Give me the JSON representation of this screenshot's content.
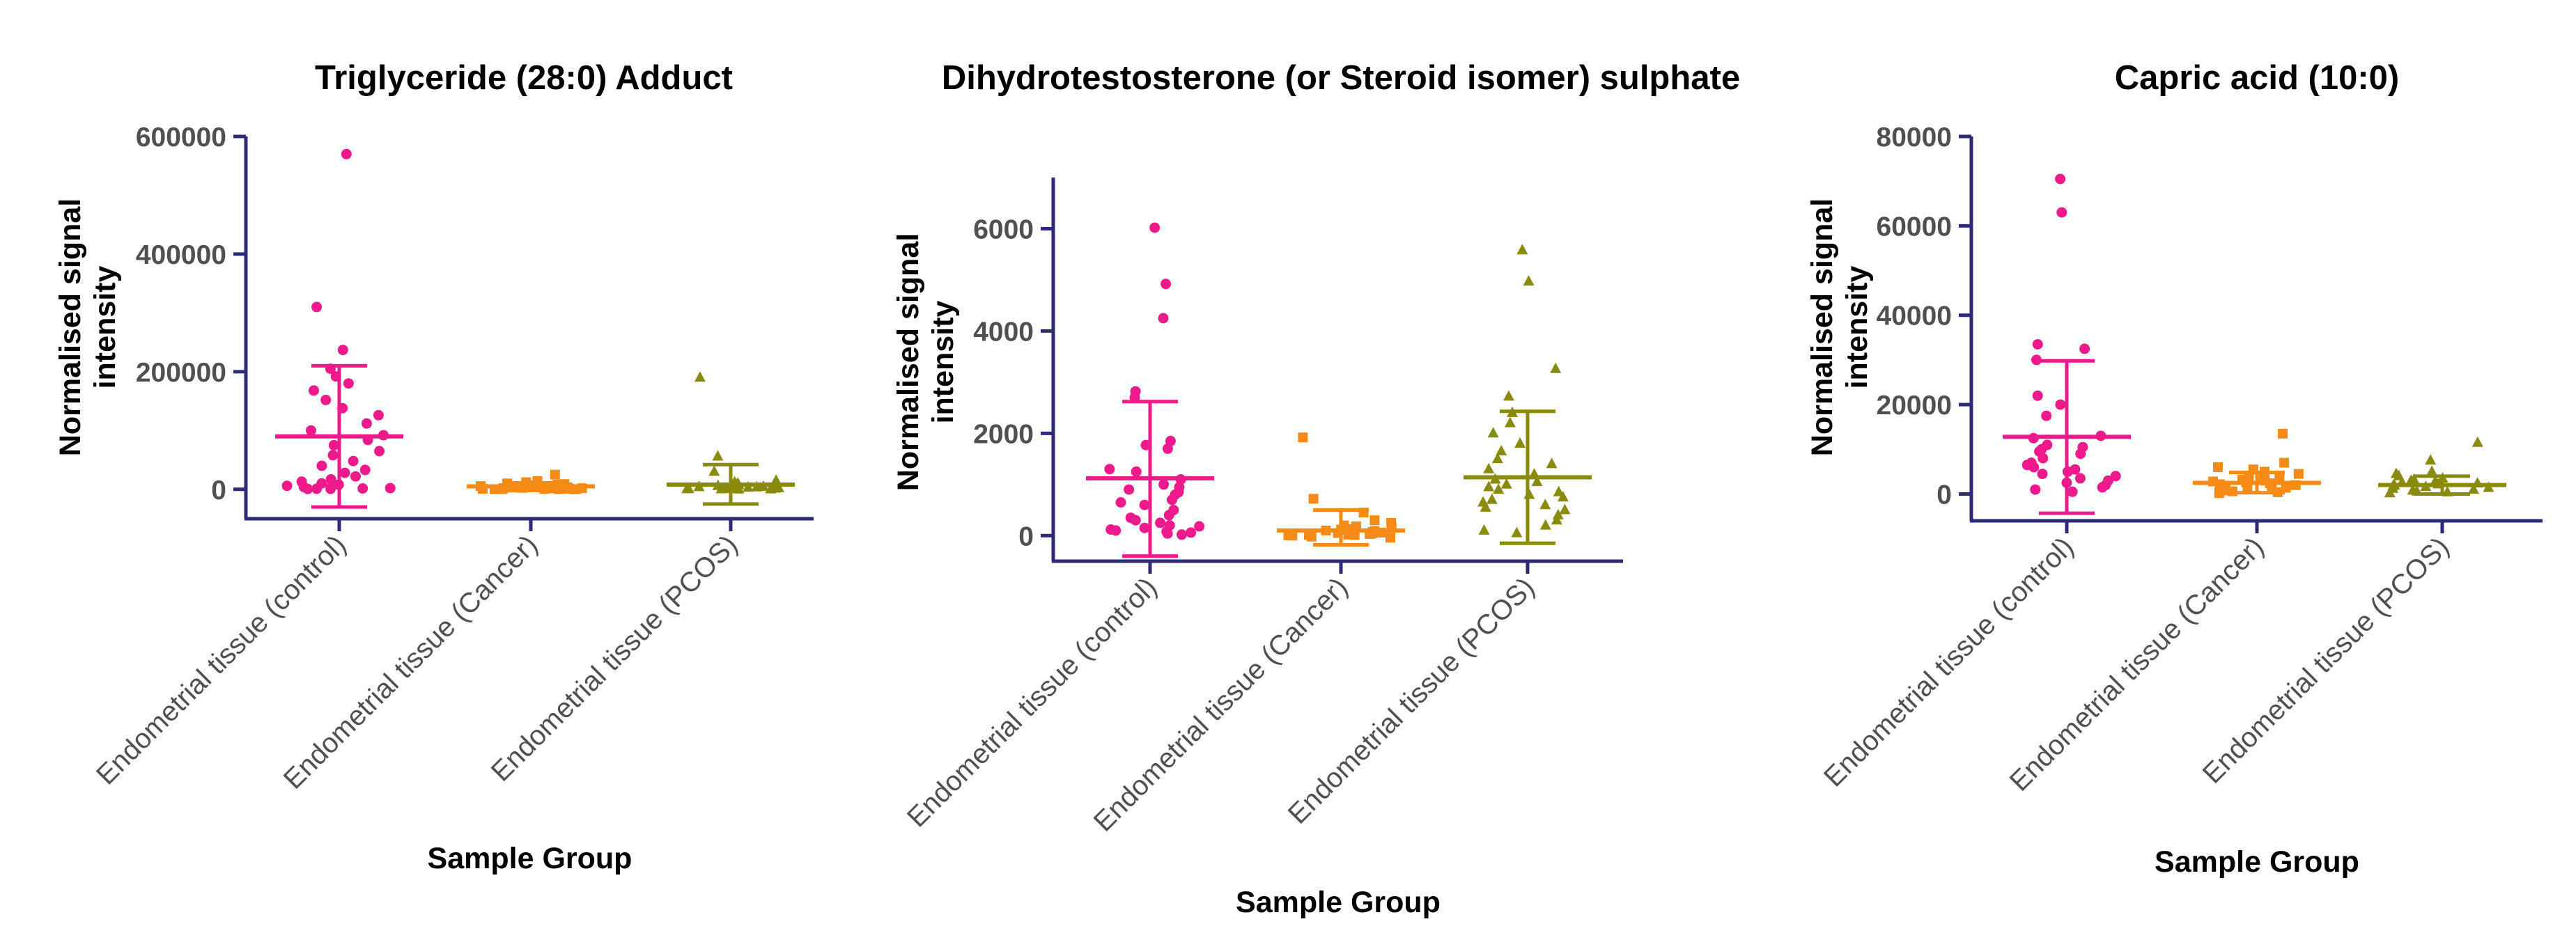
{
  "colors": {
    "axis": "#2d2a7a",
    "control": "#ee1a8c",
    "cancer": "#f58b14",
    "pcos": "#8a8a0c"
  },
  "chart_data": [
    {
      "type": "scatter",
      "title": "Triglyceride (28:0) Adduct",
      "xlabel": "Sample Group",
      "ylabel_lines": [
        "Normalised signal",
        "intensity"
      ],
      "ylim": [
        -50000,
        600000
      ],
      "yticks": [
        0,
        200000,
        400000,
        600000
      ],
      "ytick_labels": [
        "0",
        "200000",
        "400000",
        "600000"
      ],
      "categories": [
        "Endometrial tissue (control)",
        "Endometrial tissue (Cancer)",
        "Endometrial tissue (PCOS)"
      ],
      "series": [
        {
          "name": "Endometrial tissue (control)",
          "marker": "circle",
          "mean": 90000,
          "sd_low": -30000,
          "sd_high": 210000,
          "values": [
            570000,
            310000,
            237000,
            205000,
            192000,
            180000,
            168000,
            152000,
            138000,
            126000,
            112000,
            100000,
            92000,
            84000,
            75000,
            65000,
            58000,
            48000,
            40000,
            33000,
            28000,
            22000,
            17000,
            13000,
            10000,
            8000,
            6000,
            4000,
            3000,
            2000,
            1500,
            1000,
            800,
            500
          ]
        },
        {
          "name": "Endometrial tissue (Cancer)",
          "marker": "square",
          "mean": 5000,
          "sd_low": -2000,
          "sd_high": 11000,
          "values": [
            25000,
            14000,
            12000,
            10000,
            9000,
            8000,
            7000,
            6500,
            6000,
            5500,
            5000,
            4500,
            4000,
            3500,
            3000,
            2500,
            2000,
            1800,
            1500,
            1200,
            1000,
            800,
            600,
            400,
            300,
            200,
            150,
            100
          ]
        },
        {
          "name": "Endometrial tissue (PCOS)",
          "marker": "triangle",
          "mean": 8000,
          "sd_low": -25000,
          "sd_high": 42000,
          "values": [
            190000,
            56000,
            30000,
            15000,
            12000,
            10000,
            9000,
            8000,
            7000,
            6000,
            5000,
            4500,
            4000,
            3500,
            3000,
            2500,
            2000,
            1500,
            1200,
            1000,
            800,
            600,
            400,
            300,
            200,
            100
          ]
        }
      ]
    },
    {
      "type": "scatter",
      "title": "Dihydrotestosterone (or Steroid isomer) sulphate",
      "xlabel": "Sample Group",
      "ylabel_lines": [
        "Normalised signal",
        "intensity"
      ],
      "ylim": [
        -500,
        7000
      ],
      "yticks": [
        0,
        2000,
        4000,
        6000
      ],
      "ytick_labels": [
        "0",
        "2000",
        "4000",
        "6000"
      ],
      "categories": [
        "Endometrial tissue (control)",
        "Endometrial tissue (Cancer)",
        "Endometrial tissue (PCOS)"
      ],
      "series": [
        {
          "name": "Endometrial tissue (control)",
          "marker": "circle",
          "mean": 1120,
          "sd_low": -400,
          "sd_high": 2620,
          "values": [
            6020,
            4920,
            4250,
            2820,
            2700,
            1850,
            1770,
            1700,
            1300,
            1250,
            1100,
            1000,
            950,
            900,
            850,
            800,
            700,
            650,
            600,
            500,
            400,
            350,
            300,
            250,
            200,
            180,
            150,
            120,
            100,
            80,
            60,
            40,
            20
          ]
        },
        {
          "name": "Endometrial tissue (Cancer)",
          "marker": "square",
          "mean": 100,
          "sd_low": -180,
          "sd_high": 500,
          "values": [
            1920,
            720,
            450,
            300,
            250,
            200,
            180,
            150,
            130,
            120,
            100,
            90,
            80,
            70,
            60,
            50,
            40,
            30,
            20,
            15,
            10,
            5,
            0,
            -20,
            -40
          ]
        },
        {
          "name": "Endometrial tissue (PCOS)",
          "marker": "triangle",
          "mean": 1140,
          "sd_low": -150,
          "sd_high": 2430,
          "values": [
            5580,
            4970,
            3260,
            2720,
            2400,
            2200,
            2000,
            1800,
            1650,
            1500,
            1400,
            1300,
            1200,
            1100,
            1050,
            1000,
            950,
            900,
            850,
            800,
            750,
            700,
            650,
            600,
            550,
            500,
            400,
            300,
            200,
            100,
            50
          ]
        }
      ]
    },
    {
      "type": "scatter",
      "title": "Capric acid (10:0)",
      "xlabel": "Sample Group",
      "ylabel_lines": [
        "Normalised signal",
        "intensity"
      ],
      "ylim": [
        -6000,
        80000
      ],
      "yticks": [
        0,
        20000,
        40000,
        60000,
        80000
      ],
      "ytick_labels": [
        "0",
        "20000",
        "40000",
        "60000",
        "80000"
      ],
      "categories": [
        "Endometrial tissue (control)",
        "Endometrial tissue (Cancer)",
        "Endometrial tissue (PCOS)"
      ],
      "series": [
        {
          "name": "Endometrial tissue (control)",
          "marker": "circle",
          "mean": 12800,
          "sd_low": -4300,
          "sd_high": 29800,
          "values": [
            70500,
            63000,
            33500,
            32500,
            30000,
            22000,
            20000,
            17500,
            13000,
            12500,
            11000,
            10500,
            10000,
            9500,
            9000,
            8000,
            7000,
            6500,
            6000,
            5500,
            5000,
            4500,
            4000,
            3500,
            3000,
            2500,
            2000,
            1500,
            1000,
            500
          ]
        },
        {
          "name": "Endometrial tissue (Cancer)",
          "marker": "square",
          "mean": 2500,
          "sd_low": 300,
          "sd_high": 4800,
          "values": [
            13500,
            7000,
            6000,
            5500,
            5000,
            4500,
            4000,
            3800,
            3500,
            3200,
            3000,
            2800,
            2600,
            2400,
            2200,
            2000,
            1800,
            1600,
            1400,
            1200,
            1000,
            800,
            600,
            400,
            200
          ]
        },
        {
          "name": "Endometrial tissue (PCOS)",
          "marker": "triangle",
          "mean": 2000,
          "sd_low": 0,
          "sd_high": 4000,
          "values": [
            11500,
            7500,
            5000,
            4500,
            4000,
            3500,
            3200,
            3000,
            2800,
            2600,
            2400,
            2200,
            2000,
            1800,
            1600,
            1400,
            1200,
            1000,
            800,
            600,
            400,
            200
          ]
        }
      ]
    }
  ]
}
